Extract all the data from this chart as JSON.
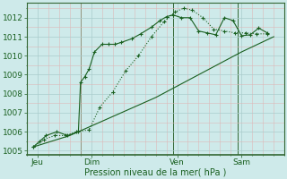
{
  "xlabel": "Pression niveau de la mer( hPa )",
  "bg_color": "#ceeaea",
  "grid_major_color": "#aacccc",
  "grid_minor_color": "#ddb8b8",
  "line_color": "#1a6020",
  "spine_color": "#336633",
  "tick_label_color": "#1a6020",
  "ylim": [
    1004.8,
    1012.8
  ],
  "yticks": [
    1005,
    1006,
    1007,
    1008,
    1009,
    1010,
    1011,
    1012
  ],
  "xlim": [
    0,
    12
  ],
  "day_labels": [
    "Jeu",
    "Dim",
    "Ven",
    "Sam"
  ],
  "day_positions": [
    0.5,
    3.0,
    7.0,
    10.0
  ],
  "vline_positions": [
    2.5,
    6.8,
    9.8
  ],
  "line1_x": [
    0.3,
    0.6,
    0.9,
    1.4,
    1.9,
    2.4,
    2.5,
    2.7,
    2.9,
    3.15,
    3.5,
    3.8,
    4.1,
    4.4,
    4.9,
    5.3,
    5.8,
    6.2,
    6.5,
    6.8,
    7.2,
    7.6,
    8.0,
    8.4,
    8.8,
    9.2,
    9.6,
    10.0,
    10.4,
    10.8,
    11.2
  ],
  "line1_y": [
    1005.2,
    1005.5,
    1005.8,
    1006.0,
    1005.8,
    1006.0,
    1008.6,
    1008.9,
    1009.3,
    1010.2,
    1010.6,
    1010.6,
    1010.6,
    1010.7,
    1010.9,
    1011.15,
    1011.5,
    1011.85,
    1012.05,
    1012.15,
    1012.0,
    1012.0,
    1011.3,
    1011.2,
    1011.1,
    1012.0,
    1011.85,
    1011.05,
    1011.1,
    1011.45,
    1011.2
  ],
  "line2_x": [
    0.3,
    0.8,
    1.3,
    1.8,
    2.3,
    2.9,
    3.4,
    4.0,
    4.6,
    5.2,
    5.8,
    6.4,
    6.9,
    7.3,
    7.7,
    8.2,
    8.7,
    9.2,
    9.7,
    10.2,
    10.7,
    11.2
  ],
  "line2_y": [
    1005.2,
    1005.6,
    1005.8,
    1005.8,
    1006.0,
    1006.1,
    1007.3,
    1008.1,
    1009.2,
    1010.0,
    1011.0,
    1011.8,
    1012.3,
    1012.5,
    1012.4,
    1012.0,
    1011.4,
    1011.3,
    1011.2,
    1011.2,
    1011.15,
    1011.15
  ],
  "line3_x": [
    0.3,
    2.0,
    4.0,
    6.0,
    8.0,
    10.0,
    11.5
  ],
  "line3_y": [
    1005.2,
    1005.8,
    1006.8,
    1007.8,
    1009.0,
    1010.2,
    1011.0
  ]
}
